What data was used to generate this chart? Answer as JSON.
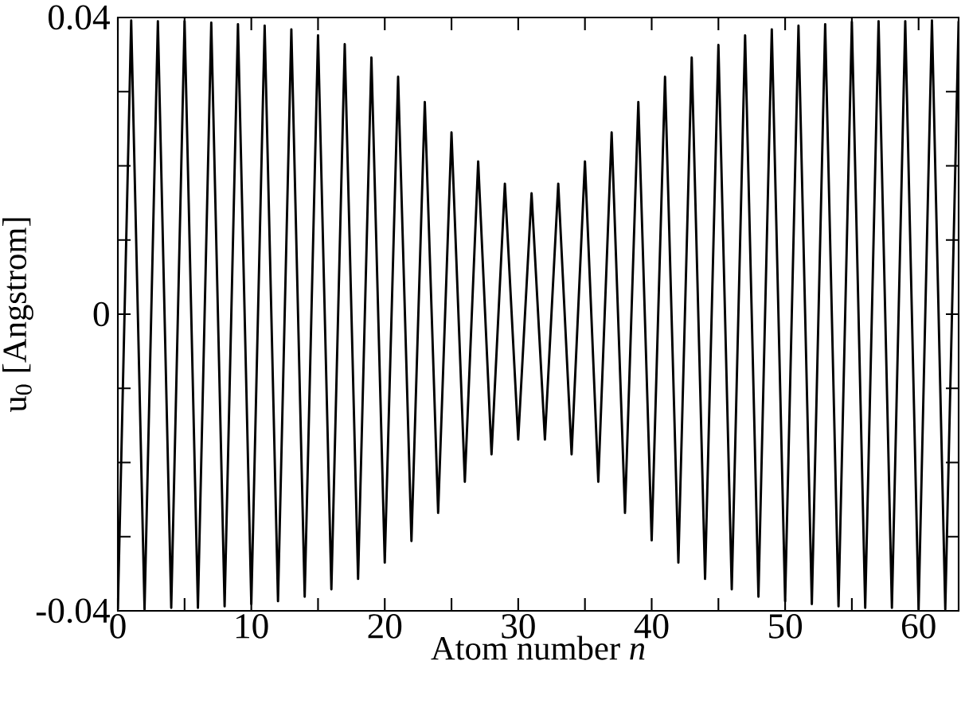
{
  "chart_data": {
    "type": "line",
    "xlabel": "Atom number *n*",
    "ylabel": "u$_{0}$ [Angstrom]",
    "x": [
      0,
      1,
      2,
      3,
      4,
      5,
      6,
      7,
      8,
      9,
      10,
      11,
      12,
      13,
      14,
      15,
      16,
      17,
      18,
      19,
      20,
      21,
      22,
      23,
      24,
      25,
      26,
      27,
      28,
      29,
      30,
      31,
      32,
      33,
      34,
      35,
      36,
      37,
      38,
      39,
      40,
      41,
      42,
      43,
      44,
      45,
      46,
      47,
      48,
      49,
      50,
      51,
      52,
      53,
      54,
      55,
      56,
      57,
      58,
      59,
      60,
      61,
      62,
      63
    ],
    "series": [
      {
        "color": "#000000",
        "values": [
          -0.0398,
          0.0396,
          -0.0398,
          0.0395,
          -0.0396,
          0.0395,
          -0.0396,
          0.0393,
          -0.0394,
          0.0391,
          -0.0391,
          0.0389,
          -0.0387,
          0.0384,
          -0.0381,
          0.0376,
          -0.0371,
          0.0364,
          -0.0357,
          0.0346,
          -0.0335,
          0.032,
          -0.0306,
          0.0286,
          -0.0268,
          0.0245,
          -0.0226,
          0.0206,
          -0.0189,
          0.0176,
          -0.0169,
          0.0163,
          -0.0169,
          0.0176,
          -0.0189,
          0.0206,
          -0.0226,
          0.0245,
          -0.0268,
          0.0286,
          -0.0305,
          0.032,
          -0.0335,
          0.0346,
          -0.0357,
          0.0363,
          -0.0371,
          0.0376,
          -0.0381,
          0.0384,
          -0.0387,
          0.0389,
          -0.0391,
          0.0391,
          -0.0394,
          0.0394,
          -0.0396,
          0.0395,
          -0.0396,
          0.0395,
          -0.0398,
          0.0396,
          -0.0398,
          0.0395
        ]
      }
    ],
    "xlim": [
      0,
      63
    ],
    "ylim": [
      -0.04,
      0.04
    ],
    "xticks": [
      0,
      {
        "value": 5,
        "label": null
      },
      10,
      {
        "value": 15,
        "label": null
      },
      20,
      {
        "value": 25,
        "label": null
      },
      30,
      {
        "value": 35,
        "label": null
      },
      40,
      {
        "value": 45,
        "label": null
      },
      50,
      {
        "value": 55,
        "label": null
      },
      60
    ],
    "yticks": [
      -0.04,
      {
        "value": -0.03,
        "label": null
      },
      {
        "value": -0.02,
        "label": null
      },
      {
        "value": -0.01,
        "label": null
      },
      0,
      {
        "value": 0.01,
        "label": null
      },
      {
        "value": 0.02,
        "label": null
      },
      {
        "value": 0.03,
        "label": null
      },
      0.04
    ],
    "marker": "none",
    "line_style": "solid"
  }
}
